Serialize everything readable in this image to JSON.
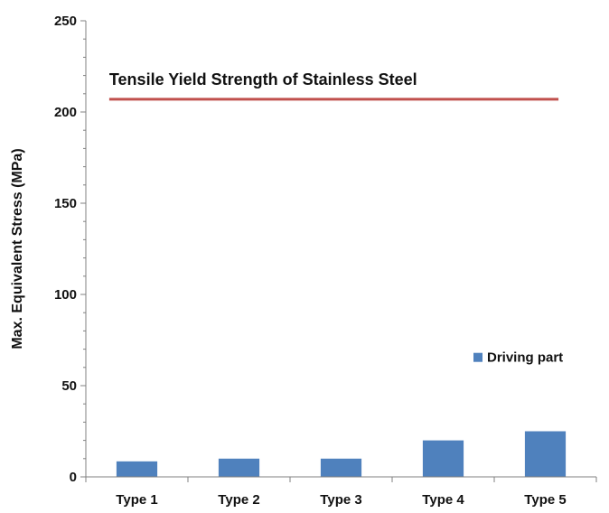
{
  "chart_data": {
    "type": "bar",
    "categories": [
      "Type 1",
      "Type 2",
      "Type 3",
      "Type 4",
      "Type 5"
    ],
    "series": [
      {
        "name": "Driving part",
        "values": [
          8.5,
          10,
          10,
          20,
          25
        ],
        "color": "#4f81bd"
      }
    ],
    "reference_line": {
      "label": "Tensile Yield Strength of Stainless Steel",
      "value": 207,
      "color": "#c0504d"
    },
    "xlabel": "",
    "ylabel": "Max. Equivalent Stress (MPa)",
    "ylim": [
      0,
      250
    ],
    "yticks": [
      0,
      50,
      100,
      150,
      200,
      250
    ],
    "grid": false,
    "legend_position": "right"
  }
}
